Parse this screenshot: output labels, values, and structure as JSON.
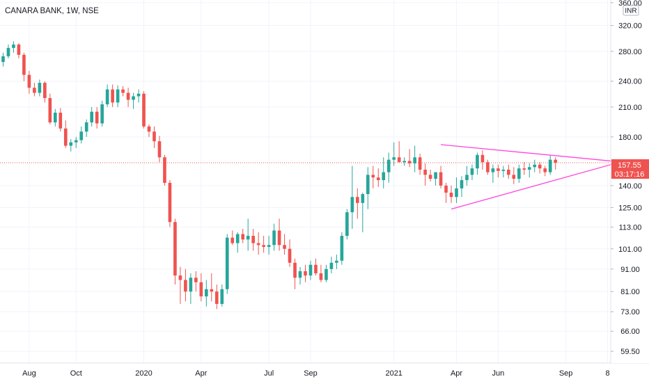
{
  "chart_data": {
    "type": "candlestick",
    "title": "CANARA BANK, 1W, NSE",
    "currency_label": "INR",
    "y_scale": "log",
    "ylim": [
      56,
      365
    ],
    "y_ticks": [
      {
        "value": 360,
        "label": "360.00"
      },
      {
        "value": 320,
        "label": "320.00"
      },
      {
        "value": 280,
        "label": "280.00"
      },
      {
        "value": 240,
        "label": "240.00"
      },
      {
        "value": 210,
        "label": "210.00"
      },
      {
        "value": 180,
        "label": "180.00"
      },
      {
        "value": 140,
        "label": "140.00"
      },
      {
        "value": 125,
        "label": "125.00"
      },
      {
        "value": 113,
        "label": "113.00"
      },
      {
        "value": 101,
        "label": "101.00"
      },
      {
        "value": 91,
        "label": "91.00"
      },
      {
        "value": 81,
        "label": "81.00"
      },
      {
        "value": 73,
        "label": "73.00"
      },
      {
        "value": 66,
        "label": "66.00"
      },
      {
        "value": 59.5,
        "label": "59.50"
      }
    ],
    "x_ticks": [
      {
        "index": 5,
        "label": "Aug"
      },
      {
        "index": 14,
        "label": "Oct"
      },
      {
        "index": 27,
        "label": "2020"
      },
      {
        "index": 38,
        "label": "Apr"
      },
      {
        "index": 51,
        "label": "Jul"
      },
      {
        "index": 59,
        "label": "Sep"
      },
      {
        "index": 75,
        "label": "2021"
      },
      {
        "index": 87,
        "label": "Apr"
      },
      {
        "index": 95,
        "label": "Jun"
      },
      {
        "index": 108,
        "label": "Sep"
      },
      {
        "index": 116,
        "label": "8"
      }
    ],
    "x_range": [
      -0.6,
      116.6
    ],
    "candles": [
      [
        265,
        278,
        259,
        273
      ],
      [
        273,
        290,
        270,
        285
      ],
      [
        285,
        295,
        278,
        290
      ],
      [
        290,
        292,
        270,
        275
      ],
      [
        275,
        278,
        240,
        248
      ],
      [
        248,
        253,
        225,
        232
      ],
      [
        232,
        238,
        222,
        226
      ],
      [
        226,
        242,
        222,
        238
      ],
      [
        238,
        240,
        215,
        220
      ],
      [
        220,
        225,
        192,
        194
      ],
      [
        194,
        208,
        190,
        204
      ],
      [
        204,
        209,
        185,
        188
      ],
      [
        188,
        196,
        170,
        172
      ],
      [
        172,
        178,
        167,
        175
      ],
      [
        175,
        180,
        170,
        177
      ],
      [
        177,
        190,
        174,
        185
      ],
      [
        185,
        197,
        180,
        194
      ],
      [
        194,
        210,
        190,
        205
      ],
      [
        205,
        210,
        188,
        193
      ],
      [
        193,
        217,
        190,
        213
      ],
      [
        213,
        236,
        210,
        230
      ],
      [
        230,
        236,
        210,
        215
      ],
      [
        215,
        235,
        210,
        230
      ],
      [
        230,
        234,
        222,
        226
      ],
      [
        226,
        232,
        210,
        218
      ],
      [
        218,
        226,
        208,
        222
      ],
      [
        222,
        230,
        215,
        225
      ],
      [
        225,
        228,
        188,
        190
      ],
      [
        190,
        192,
        180,
        185
      ],
      [
        185,
        190,
        170,
        176
      ],
      [
        176,
        181,
        158,
        162
      ],
      [
        162,
        164,
        140,
        142
      ],
      [
        142,
        144,
        113,
        116
      ],
      [
        116,
        118,
        84,
        88
      ],
      [
        88,
        92,
        76,
        86
      ],
      [
        86,
        91,
        77,
        81
      ],
      [
        81,
        89,
        76,
        87
      ],
      [
        87,
        90,
        81,
        85
      ],
      [
        85,
        89,
        77,
        79
      ],
      [
        79,
        86,
        75,
        82
      ],
      [
        82,
        89,
        77,
        81
      ],
      [
        81,
        84,
        74,
        76
      ],
      [
        76,
        84,
        75,
        82
      ],
      [
        82,
        109,
        80,
        107
      ],
      [
        107,
        111,
        103,
        104
      ],
      [
        104,
        110,
        99,
        109
      ],
      [
        109,
        112,
        104,
        106
      ],
      [
        106,
        118,
        100,
        108
      ],
      [
        108,
        112,
        100,
        104
      ],
      [
        104,
        110,
        98,
        103
      ],
      [
        103,
        108,
        99,
        102
      ],
      [
        102,
        108,
        98,
        103
      ],
      [
        103,
        115,
        100,
        111
      ],
      [
        111,
        118,
        100,
        103
      ],
      [
        103,
        109,
        98,
        101
      ],
      [
        101,
        106,
        92,
        94
      ],
      [
        94,
        96,
        82,
        87
      ],
      [
        87,
        92,
        84,
        90
      ],
      [
        90,
        93,
        85,
        88
      ],
      [
        88,
        95,
        86,
        93
      ],
      [
        93,
        96,
        88,
        89
      ],
      [
        89,
        93,
        85,
        86
      ],
      [
        86,
        93,
        85,
        91
      ],
      [
        91,
        97,
        89,
        94
      ],
      [
        94,
        98,
        91,
        95
      ],
      [
        95,
        110,
        93,
        108
      ],
      [
        108,
        124,
        106,
        122
      ],
      [
        122,
        155,
        112,
        132
      ],
      [
        132,
        138,
        118,
        128
      ],
      [
        128,
        135,
        110,
        134
      ],
      [
        134,
        154,
        124,
        148
      ],
      [
        148,
        155,
        138,
        146
      ],
      [
        146,
        153,
        139,
        144
      ],
      [
        144,
        162,
        138,
        150
      ],
      [
        150,
        166,
        142,
        160
      ],
      [
        160,
        175,
        155,
        162
      ],
      [
        162,
        176,
        158,
        158
      ],
      [
        158,
        162,
        155,
        159
      ],
      [
        159,
        169,
        154,
        157
      ],
      [
        157,
        172,
        150,
        162
      ],
      [
        162,
        165,
        148,
        152
      ],
      [
        152,
        157,
        140,
        148
      ],
      [
        148,
        152,
        143,
        145
      ],
      [
        145,
        150,
        140,
        150
      ],
      [
        150,
        155,
        138,
        140
      ],
      [
        140,
        142,
        128,
        135
      ],
      [
        135,
        140,
        128,
        132
      ],
      [
        132,
        146,
        128,
        138
      ],
      [
        138,
        147,
        132,
        144
      ],
      [
        144,
        155,
        140,
        148
      ],
      [
        148,
        156,
        144,
        153
      ],
      [
        153,
        166,
        148,
        164
      ],
      [
        164,
        168,
        152,
        158
      ],
      [
        158,
        160,
        148,
        150
      ],
      [
        150,
        156,
        142,
        153
      ],
      [
        153,
        156,
        146,
        151
      ],
      [
        151,
        155,
        146,
        152
      ],
      [
        152,
        156,
        145,
        148
      ],
      [
        148,
        154,
        141,
        145
      ],
      [
        145,
        156,
        142,
        153
      ],
      [
        153,
        158,
        148,
        152
      ],
      [
        152,
        157,
        146,
        154
      ],
      [
        154,
        160,
        150,
        156
      ],
      [
        156,
        158,
        149,
        153
      ],
      [
        153,
        155,
        147,
        150
      ],
      [
        150,
        164,
        148,
        160
      ],
      [
        160,
        162,
        152,
        157.55
      ]
    ],
    "current_price": {
      "value": 157.55,
      "label": "157.55",
      "countdown": "03:17:16"
    },
    "trendlines": [
      {
        "from": [
          84,
          173
        ],
        "to": [
          119,
          158
        ]
      },
      {
        "from": [
          86,
          124
        ],
        "to": [
          120,
          160
        ]
      }
    ],
    "colors": {
      "up": "#26a69a",
      "down": "#ef5350",
      "trendline": "#ff44dd",
      "price_line": "#ef5350",
      "grid": "#f0f3fa",
      "axis_text": "#131722",
      "background": "#ffffff"
    }
  }
}
